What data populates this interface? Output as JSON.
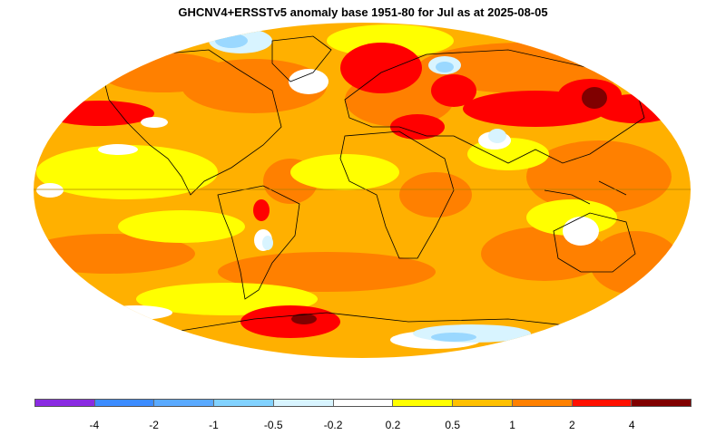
{
  "title": "GHCNV4+ERSSTv5 anomaly base 1951-80 for Jul as at 2025-08-05",
  "colors": {
    "ocean_base": "#ffb000",
    "warm": "#ff8000",
    "hot": "#ff0000",
    "very_hot": "#800000",
    "mild": "#ffff00",
    "neutral": "#ffffff",
    "cool": "#d8f4ff",
    "cold": "#9ad8ff",
    "colder": "#5aa8ff",
    "coast": "#000000"
  },
  "legend": {
    "swatches": [
      "#8a2be2",
      "#3c8cff",
      "#5aaaff",
      "#82d2ff",
      "#d8f4ff",
      "#ffffff",
      "#ffff00",
      "#ffc000",
      "#ff8000",
      "#ff1000",
      "#800000"
    ],
    "labels": [
      "-4",
      "-2",
      "-1",
      "-0.5",
      "-0.2",
      "0.2",
      "0.5",
      "1",
      "2",
      "4"
    ]
  }
}
